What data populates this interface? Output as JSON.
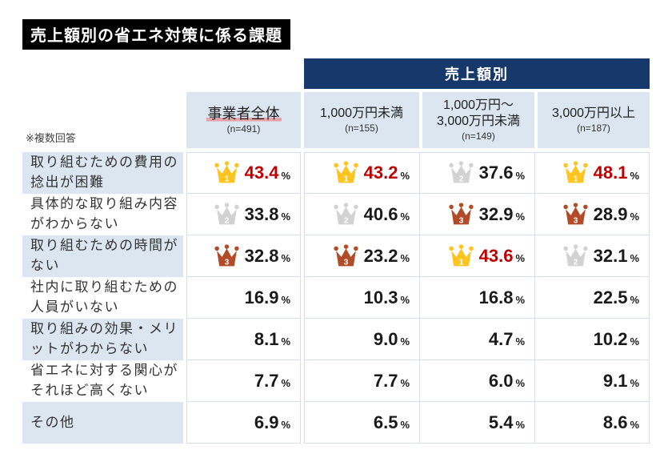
{
  "colors": {
    "title_bg": "#000000",
    "title_fg": "#FFFFFF",
    "navy_header": "#16386B",
    "cell_light_blue": "#DCE6F1",
    "grid_line": "#D5E0EE",
    "value_top_red": "#C00000",
    "value_normal": "#1A1A1A",
    "gold_crown": "#FFC41F",
    "silver_crown": "#D2D2D2",
    "bronze_crown": "#B24B28",
    "highlight_underline_pink": "#E7A3A8"
  },
  "icons": {
    "rank1": "gold-crown-icon",
    "rank2": "silver-crown-icon",
    "rank3": "bronze-crown-icon"
  },
  "chart_data": {
    "type": "table",
    "title": "売上額別の省エネ対策に係る課題",
    "note": "※複数回答",
    "unit": "%",
    "column_group": {
      "label": "売上額別",
      "applies_to_columns": [
        1,
        2,
        3
      ]
    },
    "columns": [
      {
        "label_lines": [
          "事業者全体"
        ],
        "n": "(n=491)",
        "highlight": true
      },
      {
        "label_lines": [
          "1,000万円未満"
        ],
        "n": "(n=155)",
        "highlight": false
      },
      {
        "label_lines": [
          "1,000万円～",
          "3,000万円未満"
        ],
        "n": "(n=149)",
        "highlight": false
      },
      {
        "label_lines": [
          "3,000万円以上"
        ],
        "n": "(n=187)",
        "highlight": false
      }
    ],
    "rows": [
      {
        "label": "取り組むための費用の捻出が困難",
        "values": [
          43.4,
          43.2,
          37.6,
          48.1
        ],
        "ranks": [
          1,
          1,
          2,
          1
        ]
      },
      {
        "label": "具体的な取り組み内容がわからない",
        "values": [
          33.8,
          40.6,
          32.9,
          28.9
        ],
        "ranks": [
          2,
          2,
          3,
          3
        ]
      },
      {
        "label": "取り組むための時間がない",
        "values": [
          32.8,
          23.2,
          43.6,
          32.1
        ],
        "ranks": [
          3,
          3,
          1,
          2
        ]
      },
      {
        "label": "社内に取り組むための人員がいない",
        "values": [
          16.9,
          10.3,
          16.8,
          22.5
        ],
        "ranks": [
          null,
          null,
          null,
          null
        ]
      },
      {
        "label": "取り組みの効果・メリットがわからない",
        "values": [
          8.1,
          9.0,
          4.7,
          10.2
        ],
        "ranks": [
          null,
          null,
          null,
          null
        ]
      },
      {
        "label": "省エネに対する関心がそれほど高くない",
        "values": [
          7.7,
          7.7,
          6.0,
          9.1
        ],
        "ranks": [
          null,
          null,
          null,
          null
        ]
      },
      {
        "label": "その他",
        "values": [
          6.9,
          6.5,
          5.4,
          8.6
        ],
        "ranks": [
          null,
          null,
          null,
          null
        ]
      }
    ]
  }
}
